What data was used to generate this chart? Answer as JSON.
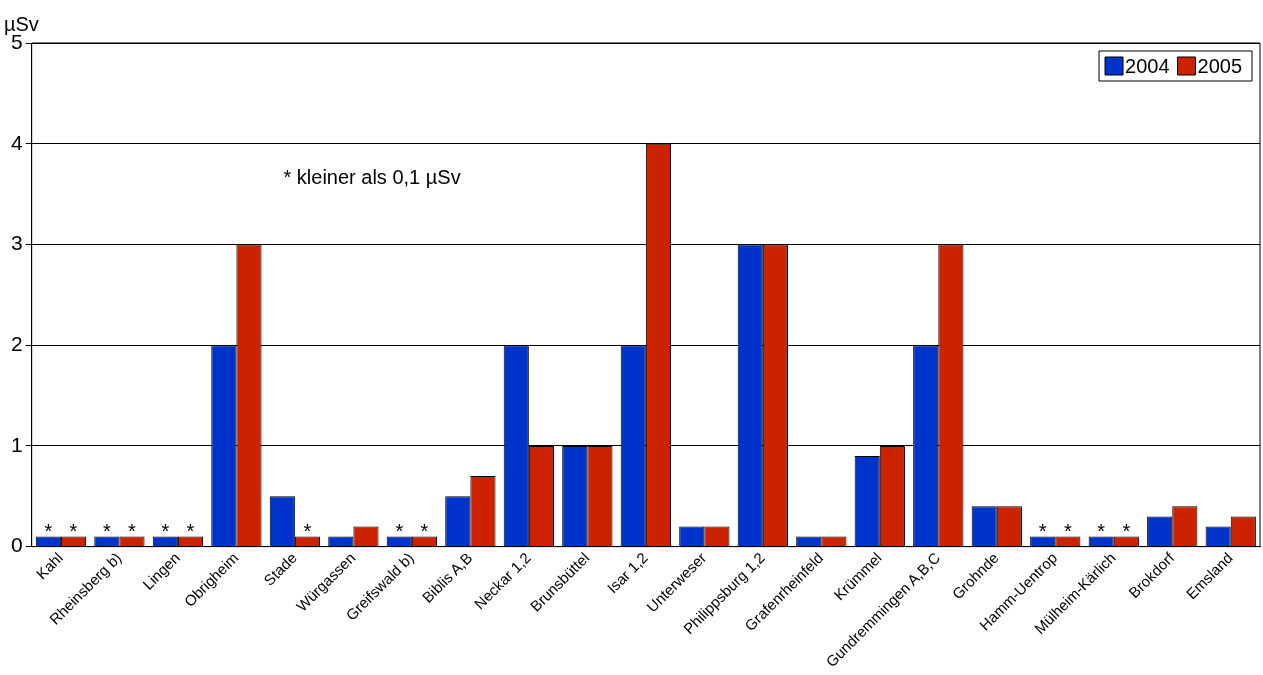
{
  "chart_data": {
    "type": "bar",
    "ylabel": "µSv",
    "categories": [
      "Kahl",
      "Rheinsberg b)",
      "Lingen",
      "Obrigheim",
      "Stade",
      "Würgassen",
      "Greifswald b)",
      "Biblis A,B",
      "Neckar 1,2",
      "Brunsbüttel",
      "Isar 1,2",
      "Unterweser",
      "Philippsburg 1,2",
      "Grafenrheinfeld",
      "Krümmel",
      "Gundremmingen A,B,C",
      "Grohnde",
      "Hamm-Uentrop",
      "Mülheim-Kärlich",
      "Brokdorf",
      "Emsland"
    ],
    "series": [
      {
        "name": "2004",
        "color": "#0033cc",
        "values": [
          0.1,
          0.1,
          0.1,
          2,
          0.5,
          0.1,
          0.1,
          0.5,
          2,
          1,
          2,
          0.2,
          3,
          0.1,
          0.9,
          2,
          0.4,
          0.1,
          0.1,
          0.3,
          0.2
        ],
        "value_labels": [
          "*",
          "*",
          "*",
          null,
          null,
          null,
          "*",
          null,
          null,
          null,
          null,
          null,
          null,
          null,
          null,
          null,
          null,
          "*",
          "*",
          null,
          null
        ]
      },
      {
        "name": "2005",
        "color": "#cc2200",
        "values": [
          0.1,
          0.1,
          0.1,
          3,
          0.1,
          0.2,
          0.1,
          0.7,
          1,
          1,
          4,
          0.2,
          3,
          0.1,
          1,
          3,
          0.4,
          0.1,
          0.1,
          0.4,
          0.3
        ],
        "value_labels": [
          "*",
          "*",
          "*",
          null,
          "*",
          null,
          "*",
          null,
          null,
          null,
          null,
          null,
          null,
          null,
          null,
          null,
          null,
          "*",
          "*",
          null,
          null
        ]
      }
    ],
    "ylim": [
      0,
      5
    ],
    "yticks": [
      0,
      1,
      2,
      3,
      4,
      5
    ],
    "grid": "y",
    "legend": "top right",
    "annotations": [
      "* kleiner als 0,1 µSv"
    ]
  }
}
